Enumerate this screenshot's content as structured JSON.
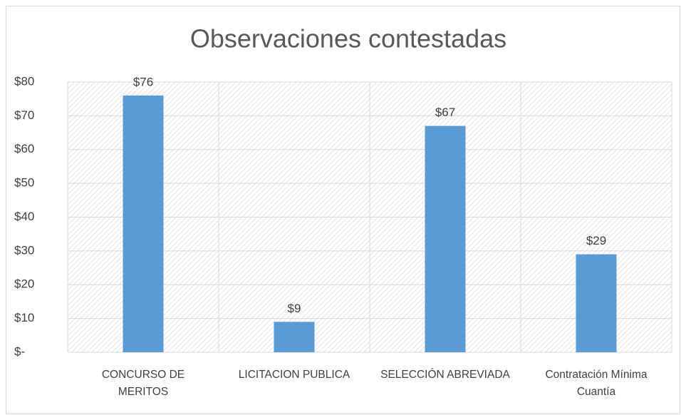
{
  "chart_data": {
    "type": "bar",
    "title": "Observaciones  contestadas",
    "categories": [
      "CONCURSO DE MERITOS",
      "LICITACION PUBLICA",
      "SELECCIÓN ABREVIADA",
      "Contratación Mínima Cuantía"
    ],
    "values": [
      76,
      9,
      67,
      29
    ],
    "value_labels": [
      "$76",
      "$9",
      "$67",
      "$29"
    ],
    "color": "#5b9bd5",
    "ylim": [
      0,
      80
    ],
    "yticks": [
      {
        "value": 0,
        "label": "$-"
      },
      {
        "value": 10,
        "label": "$10"
      },
      {
        "value": 20,
        "label": "$20"
      },
      {
        "value": 30,
        "label": "$30"
      },
      {
        "value": 40,
        "label": "$40"
      },
      {
        "value": 50,
        "label": "$50"
      },
      {
        "value": 60,
        "label": "$60"
      },
      {
        "value": 70,
        "label": "$70"
      },
      {
        "value": 80,
        "label": "$80"
      }
    ],
    "grid": true
  }
}
